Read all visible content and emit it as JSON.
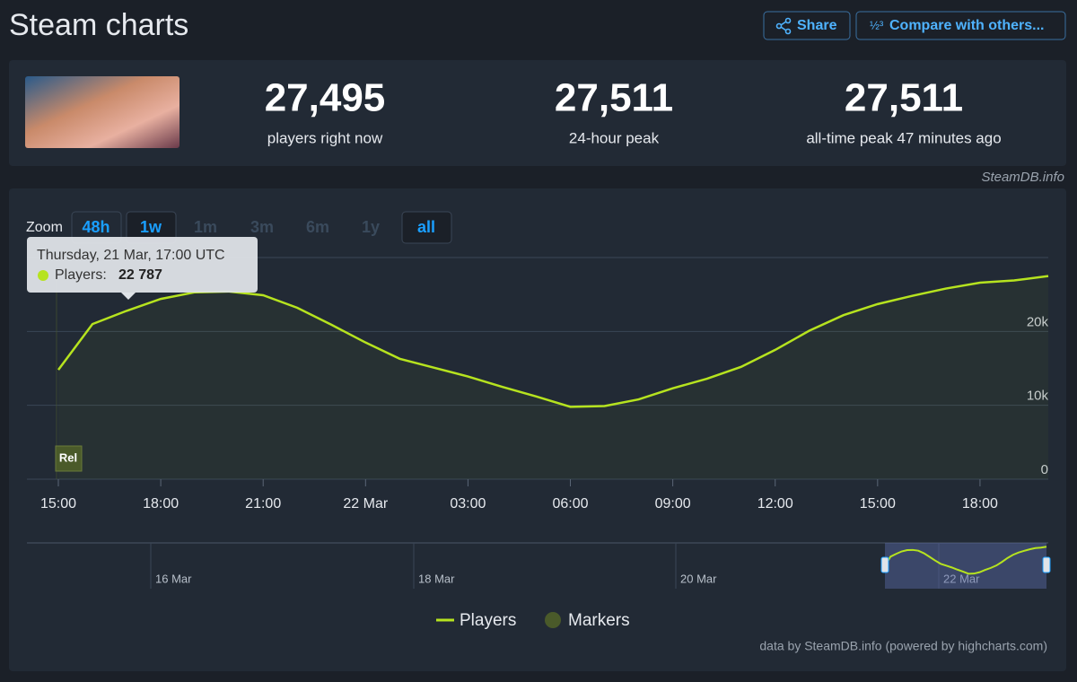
{
  "header": {
    "title": "Steam charts",
    "buttons": [
      "Share",
      "Compare with others..."
    ]
  },
  "stats": [
    {
      "value": "27,495",
      "label": "players right now"
    },
    {
      "value": "27,511",
      "label": "24-hour peak"
    },
    {
      "value": "27,511",
      "label": "all-time peak 47 minutes ago"
    }
  ],
  "source": "SteamDB.info",
  "chart_data": {
    "type": "line",
    "zoom_label": "Zoom",
    "zoom_buttons": [
      "48h",
      "1w",
      "1m",
      "3m",
      "6m",
      "1y",
      "all"
    ],
    "tooltip": {
      "title": "Thursday, 21 Mar, 17:00 UTC",
      "series_label": "Players:",
      "value": "22 787"
    },
    "x": [
      "21 Mar 15:00",
      "21 Mar 16:00",
      "21 Mar 17:00",
      "21 Mar 18:00",
      "21 Mar 19:00",
      "21 Mar 20:00",
      "21 Mar 21:00",
      "21 Mar 22:00",
      "21 Mar 23:00",
      "22 Mar 00:00",
      "22 Mar 01:00",
      "22 Mar 02:00",
      "22 Mar 03:00",
      "22 Mar 04:00",
      "22 Mar 05:00",
      "22 Mar 06:00",
      "22 Mar 07:00",
      "22 Mar 08:00",
      "22 Mar 09:00",
      "22 Mar 10:00",
      "22 Mar 11:00",
      "22 Mar 12:00",
      "22 Mar 13:00",
      "22 Mar 14:00",
      "22 Mar 15:00",
      "22 Mar 16:00",
      "22 Mar 17:00",
      "22 Mar 18:00",
      "22 Mar 19:00",
      "22 Mar 20:00"
    ],
    "xticks": [
      {
        "value": "21 Mar 15:00",
        "label": "15:00"
      },
      {
        "value": "21 Mar 18:00",
        "label": "18:00"
      },
      {
        "value": "21 Mar 21:00",
        "label": "21:00"
      },
      {
        "value": "22 Mar 00:00",
        "label": "22 Mar"
      },
      {
        "value": "22 Mar 03:00",
        "label": "03:00"
      },
      {
        "value": "22 Mar 06:00",
        "label": "06:00"
      },
      {
        "value": "22 Mar 09:00",
        "label": "09:00"
      },
      {
        "value": "22 Mar 12:00",
        "label": "12:00"
      },
      {
        "value": "22 Mar 15:00",
        "label": "15:00"
      },
      {
        "value": "22 Mar 18:00",
        "label": "18:00"
      }
    ],
    "series": [
      {
        "name": "Players",
        "color": "#b6e31f",
        "values": [
          14800,
          21000,
          22787,
          24400,
          25300,
          25400,
          24900,
          23200,
          20900,
          18500,
          16300,
          15100,
          13900,
          12500,
          11200,
          9800,
          9900,
          10800,
          12300,
          13600,
          15200,
          17500,
          20100,
          22200,
          23700,
          24800,
          25800,
          26600,
          26900,
          27500
        ]
      }
    ],
    "markers": {
      "name": "Markers",
      "color": "#4a5a2a",
      "items": [
        {
          "x": "21 Mar 15:00",
          "label": "Rel"
        }
      ]
    },
    "ylim": [
      0,
      30000
    ],
    "yticks": [
      0,
      {
        "value": 10000,
        "label": "10k"
      },
      {
        "value": 20000,
        "label": "20k"
      }
    ],
    "grid": true,
    "navigator": {
      "labels": [
        "16 Mar",
        "18 Mar",
        "20 Mar",
        "22 Mar"
      ]
    },
    "credits": "data by SteamDB.info (powered by highcharts.com)"
  }
}
